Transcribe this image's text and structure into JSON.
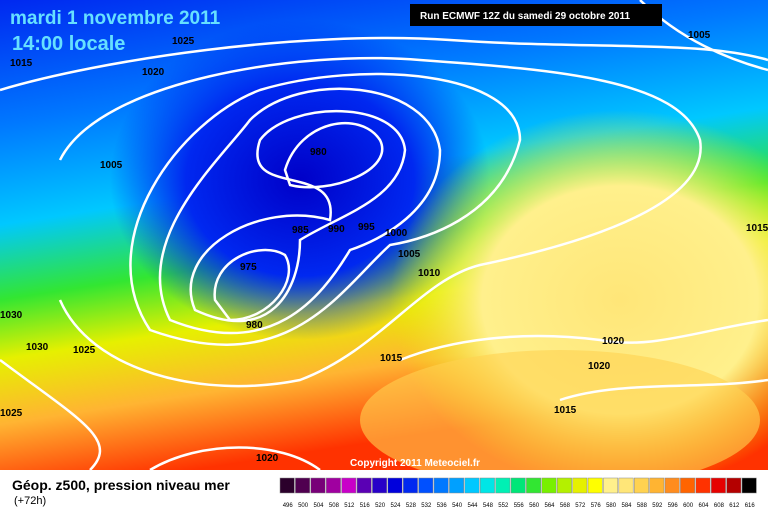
{
  "header": {
    "date": "mardi 1 novembre 2011",
    "time": "14:00 locale",
    "run": "Run ECMWF 12Z du samedi 29 octobre 2011"
  },
  "isobars": [
    1025,
    1015,
    1020,
    1005,
    1005,
    980,
    985,
    990,
    995,
    1000,
    1005,
    1010,
    975,
    980,
    1030,
    1030,
    1025,
    1015,
    1020,
    1020,
    1015,
    1025,
    1020,
    1015
  ],
  "copyright": "Copyright 2011 Meteociel.fr",
  "footer": {
    "title": "Géop. z500, pression niveau mer",
    "lead": "(+72h)"
  },
  "legend": {
    "levels": [
      496,
      500,
      504,
      508,
      512,
      516,
      520,
      524,
      528,
      532,
      536,
      540,
      544,
      548,
      552,
      556,
      560,
      564,
      568,
      572,
      576,
      580,
      584,
      588,
      592,
      596,
      600,
      604,
      608,
      612,
      616
    ],
    "colors": [
      "#2b002b",
      "#500050",
      "#780078",
      "#a000a0",
      "#c800c8",
      "#5a00b4",
      "#2800c8",
      "#0000dc",
      "#0028f0",
      "#0050ff",
      "#0078ff",
      "#00a0ff",
      "#00c8ff",
      "#00e6e6",
      "#00f0b4",
      "#00e678",
      "#32e632",
      "#78f000",
      "#b4f000",
      "#e6f000",
      "#ffff00",
      "#fff08c",
      "#ffe678",
      "#ffd250",
      "#ffb432",
      "#ff8c1e",
      "#ff6400",
      "#ff3200",
      "#e60000",
      "#b40000",
      "#000000"
    ]
  }
}
